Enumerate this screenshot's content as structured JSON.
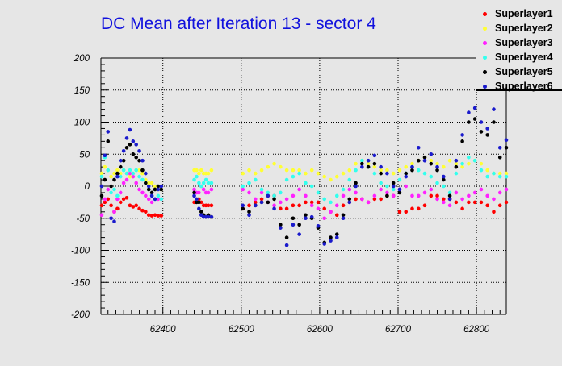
{
  "chart_data": {
    "type": "scatter",
    "title": "DC Mean after Iteration 13 - sector 4",
    "xlabel": "",
    "ylabel": "",
    "xlim": [
      62321,
      62838
    ],
    "ylim": [
      -200,
      200
    ],
    "grid": true,
    "legend_placement": "top-right",
    "x_ticks": [
      62400,
      62500,
      62600,
      62700,
      62800
    ],
    "x_tick_labels": [
      "62400",
      "62500",
      "62600",
      "62700",
      "62800"
    ],
    "y_ticks": [
      200,
      150,
      100,
      50,
      0,
      -50,
      -100,
      -150,
      -200
    ],
    "y_tick_labels": [
      "200",
      "150",
      "100",
      "50",
      "0",
      "-50",
      "-100",
      "-150",
      "-200"
    ],
    "x": [
      62322,
      62326,
      62330,
      62334,
      62338,
      62342,
      62346,
      62350,
      62354,
      62358,
      62362,
      62366,
      62370,
      62374,
      62378,
      62382,
      62386,
      62390,
      62394,
      62398,
      62440,
      62443,
      62446,
      62449,
      62452,
      62455,
      62458,
      62462,
      62502,
      62510,
      62518,
      62526,
      62534,
      62542,
      62550,
      62558,
      62566,
      62574,
      62582,
      62590,
      62598,
      62606,
      62614,
      62622,
      62630,
      62638,
      62646,
      62654,
      62662,
      62670,
      62678,
      62686,
      62694,
      62702,
      62710,
      62718,
      62726,
      62734,
      62742,
      62750,
      62758,
      62766,
      62774,
      62782,
      62790,
      62798,
      62806,
      62814,
      62822,
      62830,
      62838
    ],
    "series": [
      {
        "name": "Superlayer1",
        "color": "#ff0000",
        "values": [
          -30,
          -25,
          -20,
          -30,
          -40,
          -35,
          -25,
          -20,
          -18,
          -30,
          -32,
          -30,
          -35,
          -38,
          -40,
          -45,
          -46,
          -45,
          -46,
          -46,
          -25,
          -25,
          -20,
          -25,
          -30,
          -30,
          -30,
          -30,
          -35,
          -30,
          -25,
          -20,
          -15,
          -15,
          -35,
          -35,
          -30,
          -30,
          -25,
          -25,
          -25,
          -35,
          -40,
          -45,
          -30,
          -25,
          -20,
          -20,
          -25,
          -20,
          -20,
          -15,
          -15,
          -40,
          -40,
          -35,
          -35,
          -30,
          -15,
          -15,
          -20,
          -20,
          -25,
          -35,
          -25,
          -25,
          -25,
          -30,
          -40,
          -30,
          -25
        ]
      },
      {
        "name": "Superlayer2",
        "color": "#ffff33",
        "values": [
          20,
          30,
          25,
          15,
          20,
          25,
          20,
          25,
          20,
          15,
          20,
          25,
          25,
          20,
          10,
          5,
          5,
          0,
          -5,
          -5,
          25,
          25,
          20,
          25,
          20,
          20,
          20,
          25,
          20,
          25,
          20,
          25,
          30,
          35,
          30,
          25,
          25,
          25,
          20,
          25,
          20,
          15,
          10,
          15,
          20,
          25,
          35,
          40,
          35,
          30,
          25,
          25,
          20,
          25,
          30,
          35,
          40,
          45,
          40,
          35,
          30,
          40,
          35,
          30,
          35,
          40,
          35,
          25,
          20,
          20,
          20
        ]
      },
      {
        "name": "Superlayer3",
        "color": "#ff22ff",
        "values": [
          -45,
          -20,
          -5,
          -50,
          -40,
          -20,
          -10,
          5,
          10,
          20,
          15,
          5,
          -5,
          -10,
          -15,
          -20,
          -25,
          -20,
          -20,
          -20,
          -5,
          -10,
          -10,
          0,
          -5,
          -10,
          -10,
          -5,
          -5,
          -10,
          -20,
          -10,
          -25,
          -30,
          -25,
          -20,
          -15,
          -5,
          -15,
          -30,
          -35,
          -50,
          -40,
          -30,
          -15,
          -5,
          -10,
          -20,
          -25,
          -15,
          -5,
          -10,
          -15,
          -5,
          0,
          -15,
          -15,
          -10,
          -5,
          -20,
          -25,
          -30,
          -10,
          -20,
          -15,
          -10,
          -5,
          -15,
          -20,
          -10,
          -5
        ]
      },
      {
        "name": "Superlayer4",
        "color": "#33ffee",
        "values": [
          15,
          45,
          25,
          -10,
          -5,
          -15,
          15,
          25,
          20,
          25,
          20,
          25,
          15,
          10,
          5,
          -5,
          -15,
          -20,
          -15,
          -20,
          10,
          15,
          5,
          0,
          5,
          10,
          5,
          5,
          0,
          5,
          10,
          -5,
          -10,
          -15,
          -10,
          10,
          15,
          20,
          5,
          0,
          -10,
          -20,
          -25,
          -15,
          -5,
          10,
          25,
          40,
          30,
          20,
          5,
          0,
          -5,
          10,
          20,
          30,
          25,
          20,
          15,
          5,
          0,
          -10,
          20,
          35,
          45,
          40,
          25,
          15,
          20,
          15,
          15
        ]
      },
      {
        "name": "Superlayer5",
        "color": "#000000",
        "values": [
          -15,
          10,
          70,
          0,
          10,
          20,
          30,
          40,
          60,
          65,
          50,
          45,
          40,
          25,
          5,
          -5,
          -10,
          -5,
          0,
          -5,
          -10,
          -25,
          -25,
          -40,
          -45,
          -48,
          -45,
          -48,
          -35,
          -40,
          -30,
          -25,
          -25,
          -20,
          -60,
          -80,
          -50,
          -60,
          -45,
          -50,
          -65,
          -88,
          -80,
          -75,
          -45,
          -20,
          5,
          35,
          30,
          35,
          20,
          -15,
          5,
          -10,
          20,
          25,
          40,
          45,
          35,
          25,
          10,
          -15,
          30,
          70,
          100,
          105,
          85,
          80,
          100,
          45,
          60
        ]
      },
      {
        "name": "Superlayer6",
        "color": "#1a1acc",
        "values": [
          0,
          48,
          85,
          -50,
          -55,
          15,
          40,
          55,
          75,
          88,
          70,
          65,
          55,
          40,
          20,
          0,
          -15,
          -20,
          -5,
          0,
          -15,
          -20,
          -35,
          -45,
          -48,
          -48,
          -48,
          -48,
          -30,
          -45,
          -30,
          -25,
          -15,
          -35,
          -65,
          -92,
          -60,
          -75,
          -50,
          -48,
          -62,
          -90,
          -85,
          -80,
          -50,
          -25,
          0,
          30,
          40,
          48,
          30,
          20,
          0,
          -5,
          15,
          30,
          60,
          40,
          50,
          30,
          15,
          -20,
          40,
          80,
          115,
          122,
          100,
          90,
          120,
          60,
          72
        ]
      }
    ]
  }
}
